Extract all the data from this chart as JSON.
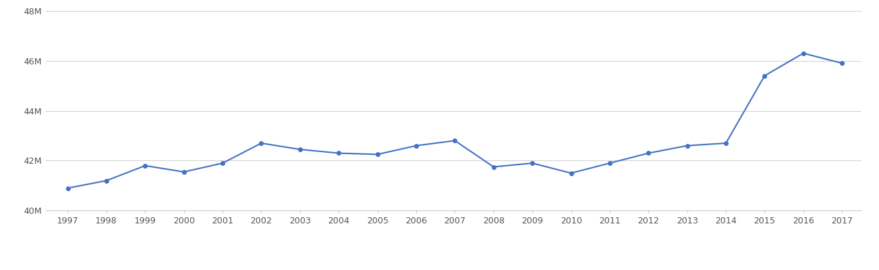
{
  "years": [
    1997,
    1998,
    1999,
    2000,
    2001,
    2002,
    2003,
    2004,
    2005,
    2006,
    2007,
    2008,
    2009,
    2010,
    2011,
    2012,
    2013,
    2014,
    2015,
    2016,
    2017
  ],
  "values": [
    40900000,
    41200000,
    41800000,
    41550000,
    41900000,
    42700000,
    42450000,
    42300000,
    42250000,
    42600000,
    42800000,
    41750000,
    41900000,
    41500000,
    41900000,
    42300000,
    42600000,
    42700000,
    45400000,
    46300000,
    45900000
  ],
  "line_color": "#4472C4",
  "marker": "o",
  "marker_size": 4,
  "line_width": 1.5,
  "ylim": [
    40000000,
    48000000
  ],
  "yticks": [
    40000000,
    42000000,
    44000000,
    46000000,
    48000000
  ],
  "ytick_labels": [
    "40M",
    "42M",
    "44M",
    "46M",
    "48M"
  ],
  "background_color": "#ffffff",
  "grid_color": "#d0d0d0",
  "tick_color": "#555555",
  "spine_color": "#cccccc",
  "tick_fontsize": 9
}
